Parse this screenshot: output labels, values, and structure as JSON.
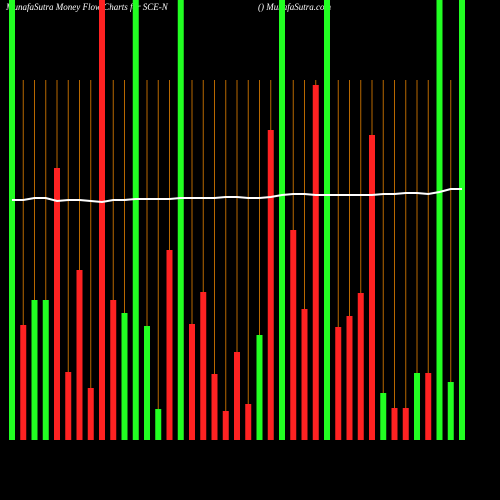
{
  "chart_data": {
    "type": "bar",
    "title": "MunafaSutra  Money Flow  Charts for SCE-N",
    "subtitle": "() MunafaSutra.com",
    "categories": [
      null,
      null,
      null,
      null,
      null,
      null,
      null,
      null,
      null,
      null,
      null,
      null,
      null,
      null,
      null,
      null,
      null,
      null,
      null,
      null,
      null,
      null,
      null,
      null,
      null,
      null,
      null,
      null,
      null,
      null,
      null,
      null,
      null,
      null,
      null,
      null,
      null,
      null,
      null,
      null,
      null
    ],
    "values": [
      440,
      115,
      140,
      140,
      272,
      68,
      170,
      52,
      440,
      140,
      127,
      440,
      114,
      31,
      190,
      440,
      116,
      148,
      66,
      29,
      88,
      36,
      105,
      310,
      440,
      210,
      131,
      355,
      440,
      113,
      124,
      147,
      305,
      47,
      32,
      32,
      67,
      67,
      440,
      58,
      440
    ],
    "colors": [
      "#22ff22",
      "#ff2222",
      "#22ff22",
      "#22ff22",
      "#ff2222",
      "#ff2222",
      "#ff2222",
      "#ff2222",
      "#ff2222",
      "#ff2222",
      "#22ff22",
      "#22ff22",
      "#22ff22",
      "#22ff22",
      "#ff2222",
      "#22ff22",
      "#ff2222",
      "#ff2222",
      "#ff2222",
      "#ff2222",
      "#ff2222",
      "#ff2222",
      "#22ff22",
      "#ff2222",
      "#22ff22",
      "#ff2222",
      "#ff2222",
      "#ff2222",
      "#22ff22",
      "#ff2222",
      "#ff2222",
      "#ff2222",
      "#ff2222",
      "#22ff22",
      "#ff2222",
      "#ff2222",
      "#22ff22",
      "#ff2222",
      "#22ff22",
      "#22ff22",
      "#22ff22"
    ],
    "line": {
      "color": "#ffffff",
      "values": [
        240,
        240,
        242,
        242,
        239,
        240,
        240,
        239,
        238,
        240,
        240,
        241,
        241,
        241,
        241,
        242,
        242,
        242,
        242,
        243,
        243,
        242,
        242,
        243,
        245,
        246,
        246,
        245,
        245,
        245,
        245,
        245,
        245,
        246,
        246,
        247,
        247,
        246,
        248,
        251,
        251
      ]
    },
    "grid_color": "#b86800",
    "ylim": [
      0,
      440
    ]
  }
}
